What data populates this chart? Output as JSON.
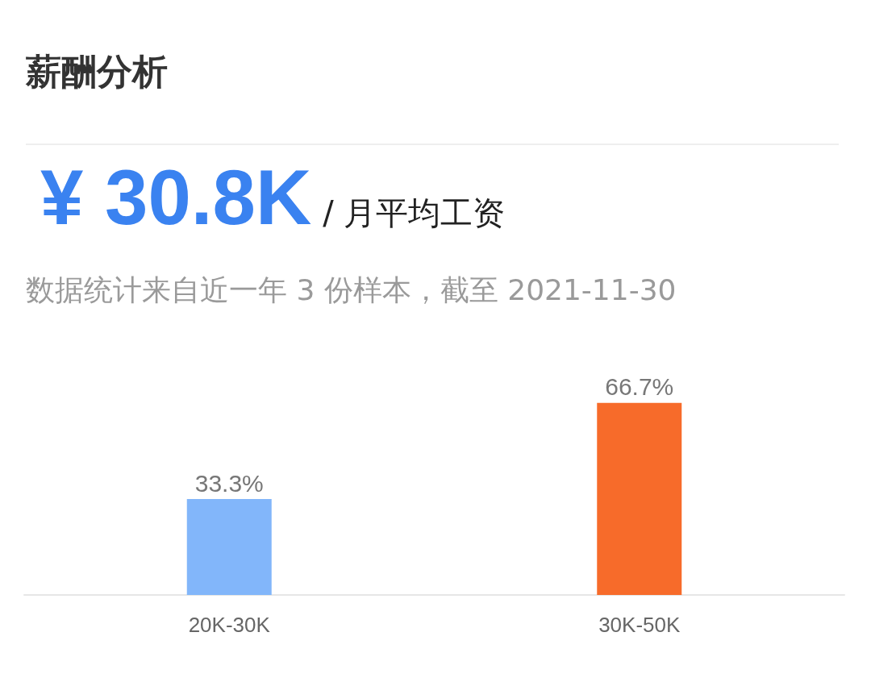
{
  "chart_data": {
    "type": "bar",
    "title": "薪酬分析",
    "subtitle": "数据统计来自近一年 3 份样本，截至 2021-11-30",
    "annotations": [
      "¥ 30.8K",
      "/ 月平均工资"
    ],
    "categories": [
      "20K-30K",
      "30K-50K"
    ],
    "values": [
      33.3,
      66.7
    ],
    "colors": [
      "#82b6fa",
      "#f76b2a"
    ],
    "value_labels": [
      "33.3%",
      "66.7%"
    ]
  }
}
